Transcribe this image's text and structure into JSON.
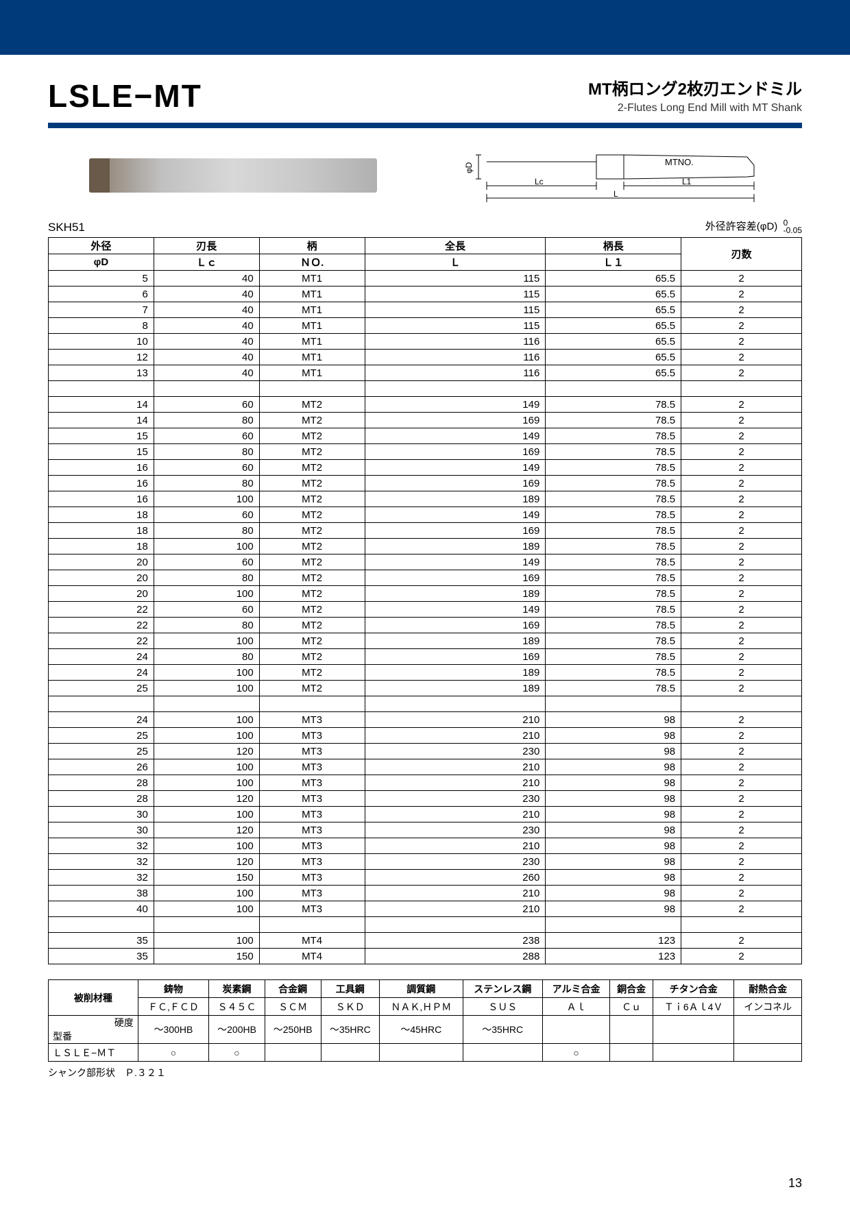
{
  "topbar_color": "#003a7a",
  "header": {
    "code": "LSLE−MT",
    "jp": "MT柄ロング2枚刃エンドミル",
    "en": "2-Flutes Long End Mill with MT Shank"
  },
  "diagram": {
    "phiD": "φD",
    "Lc": "Lc",
    "L": "L",
    "L1": "L1",
    "mtno": "MTNO."
  },
  "material": "SKH51",
  "tolerance": {
    "label": "外径許容差(φD)",
    "upper": "0",
    "lower": "-0.05"
  },
  "spec": {
    "head1": [
      "外径",
      "刃長",
      "柄",
      "全長",
      "柄長",
      "刃数"
    ],
    "head2": [
      "φD",
      "Ｌｃ",
      "ＮＯ.",
      "Ｌ",
      "Ｌ１",
      ""
    ],
    "groups": [
      [
        [
          "5",
          "40",
          "MT1",
          "115",
          "65.5",
          "2"
        ],
        [
          "6",
          "40",
          "MT1",
          "115",
          "65.5",
          "2"
        ],
        [
          "7",
          "40",
          "MT1",
          "115",
          "65.5",
          "2"
        ],
        [
          "8",
          "40",
          "MT1",
          "115",
          "65.5",
          "2"
        ],
        [
          "10",
          "40",
          "MT1",
          "116",
          "65.5",
          "2"
        ],
        [
          "12",
          "40",
          "MT1",
          "116",
          "65.5",
          "2"
        ],
        [
          "13",
          "40",
          "MT1",
          "116",
          "65.5",
          "2"
        ]
      ],
      [
        [
          "14",
          "60",
          "MT2",
          "149",
          "78.5",
          "2"
        ],
        [
          "14",
          "80",
          "MT2",
          "169",
          "78.5",
          "2"
        ],
        [
          "15",
          "60",
          "MT2",
          "149",
          "78.5",
          "2"
        ],
        [
          "15",
          "80",
          "MT2",
          "169",
          "78.5",
          "2"
        ],
        [
          "16",
          "60",
          "MT2",
          "149",
          "78.5",
          "2"
        ],
        [
          "16",
          "80",
          "MT2",
          "169",
          "78.5",
          "2"
        ],
        [
          "16",
          "100",
          "MT2",
          "189",
          "78.5",
          "2"
        ],
        [
          "18",
          "60",
          "MT2",
          "149",
          "78.5",
          "2"
        ],
        [
          "18",
          "80",
          "MT2",
          "169",
          "78.5",
          "2"
        ],
        [
          "18",
          "100",
          "MT2",
          "189",
          "78.5",
          "2"
        ],
        [
          "20",
          "60",
          "MT2",
          "149",
          "78.5",
          "2"
        ],
        [
          "20",
          "80",
          "MT2",
          "169",
          "78.5",
          "2"
        ],
        [
          "20",
          "100",
          "MT2",
          "189",
          "78.5",
          "2"
        ],
        [
          "22",
          "60",
          "MT2",
          "149",
          "78.5",
          "2"
        ],
        [
          "22",
          "80",
          "MT2",
          "169",
          "78.5",
          "2"
        ],
        [
          "22",
          "100",
          "MT2",
          "189",
          "78.5",
          "2"
        ],
        [
          "24",
          "80",
          "MT2",
          "169",
          "78.5",
          "2"
        ],
        [
          "24",
          "100",
          "MT2",
          "189",
          "78.5",
          "2"
        ],
        [
          "25",
          "100",
          "MT2",
          "189",
          "78.5",
          "2"
        ]
      ],
      [
        [
          "24",
          "100",
          "MT3",
          "210",
          "98",
          "2"
        ],
        [
          "25",
          "100",
          "MT3",
          "210",
          "98",
          "2"
        ],
        [
          "25",
          "120",
          "MT3",
          "230",
          "98",
          "2"
        ],
        [
          "26",
          "100",
          "MT3",
          "210",
          "98",
          "2"
        ],
        [
          "28",
          "100",
          "MT3",
          "210",
          "98",
          "2"
        ],
        [
          "28",
          "120",
          "MT3",
          "230",
          "98",
          "2"
        ],
        [
          "30",
          "100",
          "MT3",
          "210",
          "98",
          "2"
        ],
        [
          "30",
          "120",
          "MT3",
          "230",
          "98",
          "2"
        ],
        [
          "32",
          "100",
          "MT3",
          "210",
          "98",
          "2"
        ],
        [
          "32",
          "120",
          "MT3",
          "230",
          "98",
          "2"
        ],
        [
          "32",
          "150",
          "MT3",
          "260",
          "98",
          "2"
        ],
        [
          "38",
          "100",
          "MT3",
          "210",
          "98",
          "2"
        ],
        [
          "40",
          "100",
          "MT3",
          "210",
          "98",
          "2"
        ]
      ],
      [
        [
          "35",
          "100",
          "MT4",
          "238",
          "123",
          "2"
        ],
        [
          "35",
          "150",
          "MT4",
          "288",
          "123",
          "2"
        ]
      ]
    ]
  },
  "mat": {
    "row1_label": "被削材種",
    "row1": [
      "鋳物",
      "炭素鋼",
      "合金鋼",
      "工具鋼",
      "調質鋼",
      "ステンレス鋼",
      "アルミ合金",
      "銅合金",
      "チタン合金",
      "耐熱合金"
    ],
    "row2": [
      "ＦＣ,ＦＣＤ",
      "Ｓ４５Ｃ",
      "ＳＣＭ",
      "ＳＫＤ",
      "ＮＡＫ,ＨＰＭ",
      "ＳＵＳ",
      "Ａｌ",
      "Ｃｕ",
      "Ｔｉ6Ａｌ4Ｖ",
      "インコネル"
    ],
    "row3_left": "硬度",
    "row3_label": "型番",
    "row3": [
      "～300HB",
      "～200HB",
      "～250HB",
      "～35HRC",
      "～45HRC",
      "～35HRC",
      "",
      "",
      "",
      ""
    ],
    "row4_label": "ＬＳＬＥ−ＭＴ",
    "row4": [
      "○",
      "○",
      "",
      "",
      "",
      "",
      "○",
      "",
      "",
      ""
    ]
  },
  "footnote": "シャンク部形状　Ｐ.３２１",
  "pagenum": "13"
}
